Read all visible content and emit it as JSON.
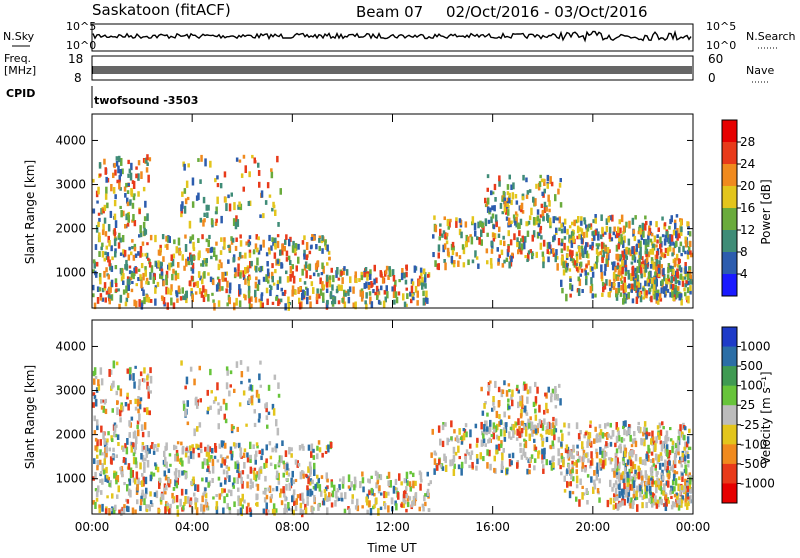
{
  "header": {
    "station": "Saskatoon (fitACF)",
    "beam": "Beam 07",
    "date_range": "02/Oct/2016 - 03/Oct/2016"
  },
  "strip_labels": {
    "nsky": "N.Sky",
    "nsky_ticks": [
      "10^5",
      "10^0"
    ],
    "nsearch": "N.Search",
    "nsearch_ticks": [
      "10^5",
      "10^0"
    ],
    "freq": "Freq.",
    "freq_unit": "[MHz]",
    "freq_ticks": [
      "18",
      "8"
    ],
    "nave": "Nave",
    "nave_ticks": [
      "60",
      "0"
    ],
    "cpid": "CPID",
    "cpid_value": "twofsound -3503"
  },
  "chart_data": [
    {
      "type": "heatmap",
      "name": "power",
      "ylabel": "Slant Range [km]",
      "yticks": [
        "1000",
        "2000",
        "3000",
        "4000"
      ],
      "ylim": [
        200,
        4600
      ],
      "xticks": [
        "00:00",
        "04:00",
        "08:00",
        "12:00",
        "16:00",
        "20:00",
        "00:00"
      ],
      "colorbar": {
        "label": "Power [dB]",
        "ticks": [
          "4",
          "8",
          "12",
          "16",
          "20",
          "24",
          "28"
        ],
        "colors": [
          "#1a1aff",
          "#2c5cae",
          "#3f8c77",
          "#6aab3c",
          "#e3c51c",
          "#f08a1e",
          "#e83a1a",
          "#e60000"
        ]
      }
    },
    {
      "type": "heatmap",
      "name": "velocity",
      "ylabel": "Slant Range [km]",
      "yticks": [
        "1000",
        "2000",
        "3000",
        "4000"
      ],
      "ylim": [
        200,
        4600
      ],
      "xticks": [
        "00:00",
        "04:00",
        "08:00",
        "12:00",
        "16:00",
        "20:00",
        "00:00"
      ],
      "xlabel": "Time UT",
      "colorbar": {
        "label": "Velocity [m s⁻¹]",
        "ticks": [
          "1000",
          "500",
          "100",
          "25",
          "-25",
          "-100",
          "-500",
          "-1000"
        ],
        "colors": [
          "#1e3bc8",
          "#2b6ea6",
          "#3f9a52",
          "#67c43a",
          "#bcbcbc",
          "#e3c51c",
          "#f08a1e",
          "#e83a1a",
          "#e60000"
        ]
      }
    }
  ]
}
